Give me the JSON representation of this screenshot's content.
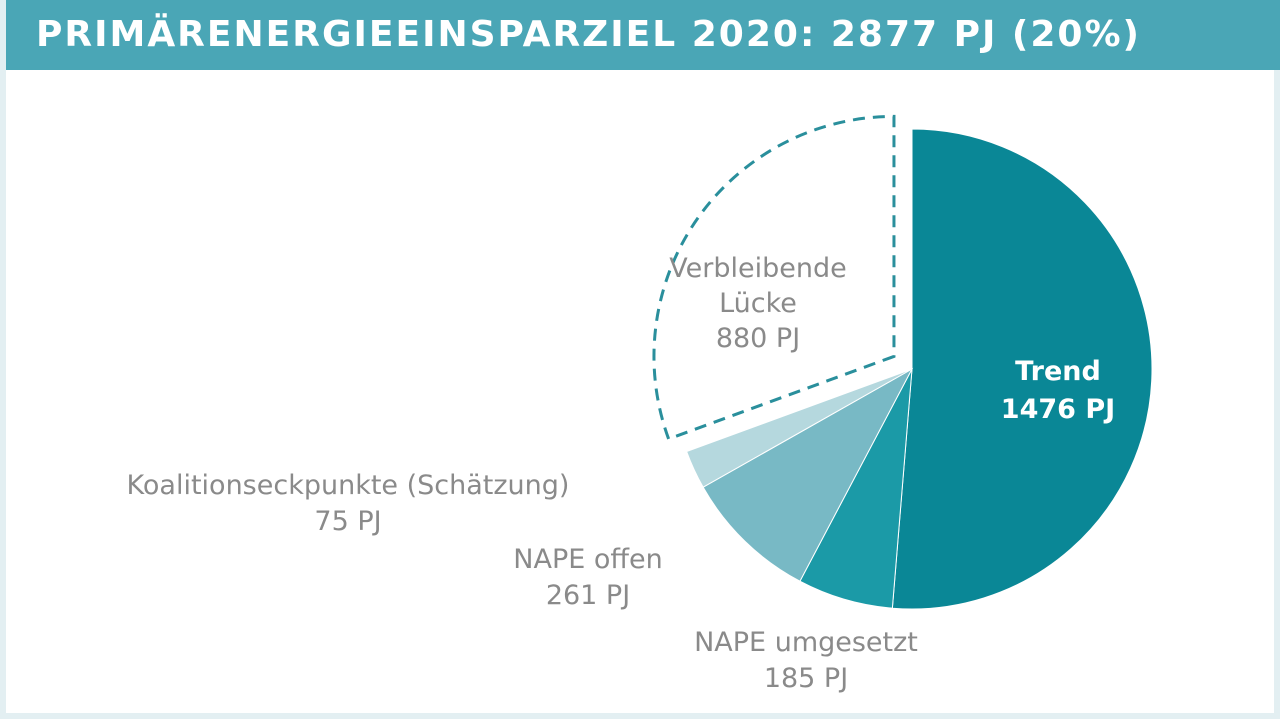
{
  "title": "PRIMÄRENERGIEEINSPARZIEL 2020: 2877 PJ (20%)",
  "chart_data": {
    "type": "pie",
    "title": "PRIMÄRENERGIEEINSPARZIEL 2020: 2877 PJ (20%)",
    "total": 2877,
    "unit": "PJ",
    "slices": [
      {
        "name": "Trend",
        "value": 1476,
        "value_label": "1476 PJ",
        "color": "#0a8796",
        "style": "solid"
      },
      {
        "name": "NAPE umgesetzt",
        "value": 185,
        "value_label": "185 PJ",
        "color": "#1b9aa7",
        "style": "solid"
      },
      {
        "name": "NAPE offen",
        "value": 261,
        "value_label": "261 PJ",
        "color": "#78b9c5",
        "style": "solid"
      },
      {
        "name": "Koalitionseckpunkte (Schätzung)",
        "value": 75,
        "value_label": "75 PJ",
        "color": "#b5d8de",
        "style": "solid"
      },
      {
        "name": "Verbleibende Lücke",
        "name_lines": [
          "Verbleibende",
          "Lücke"
        ],
        "value": 880,
        "value_label": "880 PJ",
        "color": "#2a8f9c",
        "style": "dashed-outline",
        "exploded": true
      }
    ]
  }
}
